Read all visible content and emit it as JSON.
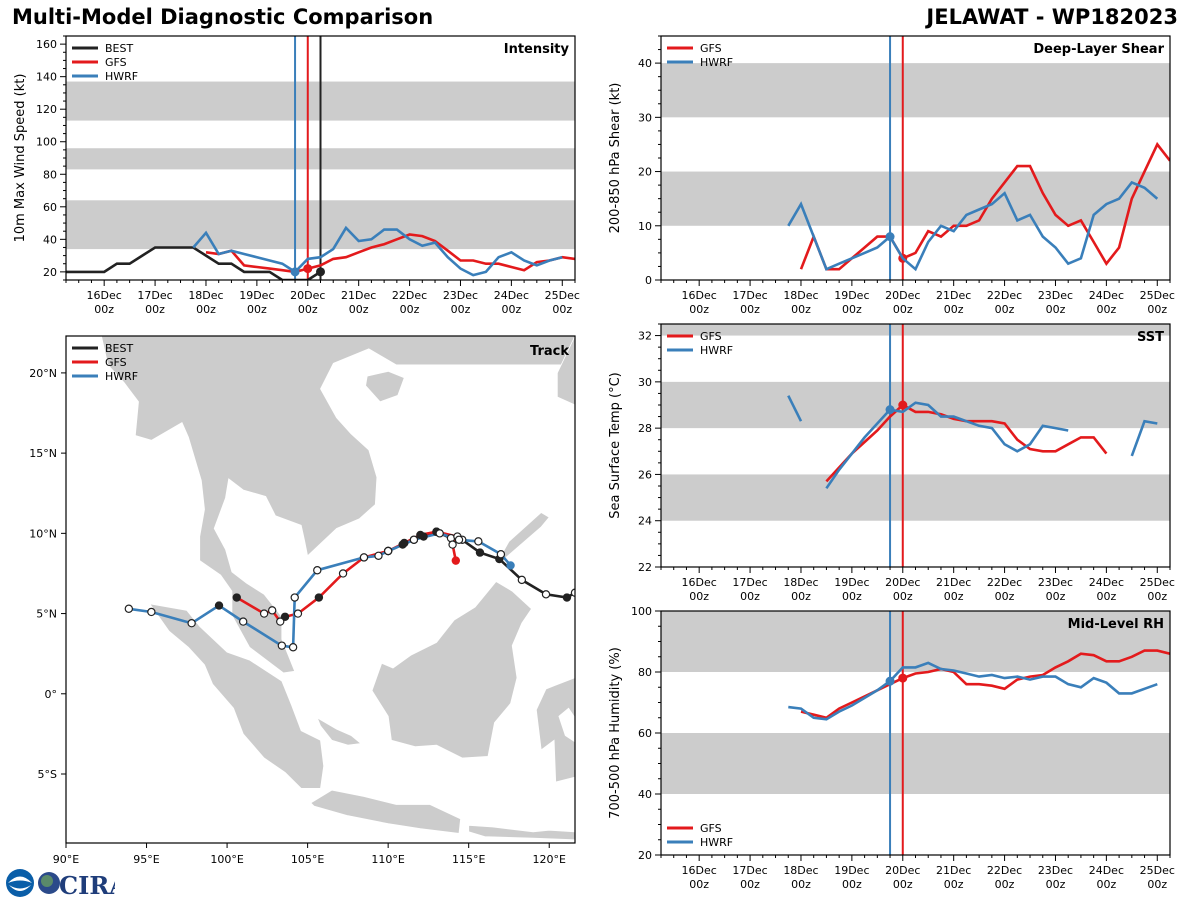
{
  "header": {
    "title": "Multi-Model Diagnostic Comparison",
    "storm": "JELAWAT - WP182023"
  },
  "colors": {
    "BEST": "#222222",
    "GFS": "#e31a1c",
    "HWRF": "#3a7fba",
    "band": "#cccccc"
  },
  "time_ticks": [
    {
      "t": 0,
      "l1": "16Dec",
      "l2": "00z"
    },
    {
      "t": 24,
      "l1": "17Dec",
      "l2": "00z"
    },
    {
      "t": 48,
      "l1": "18Dec",
      "l2": "00z"
    },
    {
      "t": 72,
      "l1": "19Dec",
      "l2": "00z"
    },
    {
      "t": 96,
      "l1": "20Dec",
      "l2": "00z"
    },
    {
      "t": 120,
      "l1": "21Dec",
      "l2": "00z"
    },
    {
      "t": 144,
      "l1": "22Dec",
      "l2": "00z"
    },
    {
      "t": 168,
      "l1": "23Dec",
      "l2": "00z"
    },
    {
      "t": 192,
      "l1": "24Dec",
      "l2": "00z"
    },
    {
      "t": 216,
      "l1": "25Dec",
      "l2": "00z"
    }
  ],
  "logo": {
    "text": "CIRA"
  },
  "chart_data": [
    {
      "id": "intensity",
      "type": "line",
      "title": "Intensity",
      "ylabel": "10m Max Wind Speed (kt)",
      "xlabel": "",
      "xlim": [
        -18,
        222
      ],
      "ylim": [
        15,
        165
      ],
      "yticks": [
        20,
        40,
        60,
        80,
        100,
        120,
        140,
        160
      ],
      "bands": [
        [
          34,
          64
        ],
        [
          83,
          96
        ],
        [
          113,
          137
        ]
      ],
      "legend": [
        "BEST",
        "GFS",
        "HWRF"
      ],
      "legend_position": "top-left",
      "vlines": [
        {
          "model": "HWRF",
          "t": 90
        },
        {
          "model": "GFS",
          "t": 96
        },
        {
          "model": "BEST",
          "t": 102
        }
      ],
      "series": [
        {
          "name": "BEST",
          "t": [
            -18,
            -12,
            -6,
            0,
            6,
            12,
            18,
            24,
            30,
            36,
            42,
            48,
            54,
            60,
            66,
            72,
            78,
            84,
            90,
            96,
            102
          ],
          "values": [
            20,
            20,
            20,
            20,
            25,
            25,
            30,
            35,
            35,
            35,
            35,
            30,
            25,
            25,
            20,
            20,
            20,
            15,
            15,
            15,
            20
          ],
          "marker_t": 102
        },
        {
          "name": "GFS",
          "t": [
            48,
            54,
            60,
            66,
            72,
            78,
            84,
            90,
            96,
            102,
            108,
            114,
            120,
            126,
            132,
            138,
            144,
            150,
            156,
            162,
            168,
            174,
            180,
            186,
            192,
            198,
            204,
            210,
            216,
            222
          ],
          "values": [
            32,
            31,
            33,
            24,
            23,
            22,
            21,
            20,
            22,
            24,
            28,
            29,
            32,
            35,
            37,
            40,
            43,
            42,
            39,
            33,
            27,
            27,
            25,
            25,
            23,
            21,
            26,
            27,
            29,
            28
          ],
          "marker_t": 96
        },
        {
          "name": "HWRF",
          "t": [
            42,
            48,
            54,
            60,
            66,
            72,
            78,
            84,
            90,
            96,
            102,
            108,
            114,
            120,
            126,
            132,
            138,
            144,
            150,
            156,
            162,
            168,
            174,
            180,
            186,
            192,
            198,
            204,
            210,
            216
          ],
          "values": [
            35,
            44,
            31,
            33,
            31,
            29,
            27,
            25,
            20,
            28,
            29,
            34,
            47,
            39,
            40,
            46,
            46,
            40,
            36,
            38,
            29,
            22,
            18,
            20,
            29,
            32,
            27,
            24,
            27,
            29
          ],
          "marker_t": 90
        }
      ]
    },
    {
      "id": "shear",
      "type": "line",
      "title": "Deep-Layer Shear",
      "ylabel": "200-850 hPa Shear (kt)",
      "xlabel": "",
      "xlim": [
        -18,
        222
      ],
      "ylim": [
        0,
        45
      ],
      "yticks": [
        0,
        10,
        20,
        30,
        40
      ],
      "bands": [
        [
          10,
          20
        ],
        [
          30,
          40
        ]
      ],
      "legend": [
        "GFS",
        "HWRF"
      ],
      "legend_position": "top-left",
      "vlines": [
        {
          "model": "HWRF",
          "t": 90
        },
        {
          "model": "GFS",
          "t": 96
        }
      ],
      "series": [
        {
          "name": "GFS",
          "t": [
            48,
            54,
            60,
            66,
            72,
            78,
            84,
            90,
            96,
            102,
            108,
            114,
            120,
            126,
            132,
            138,
            144,
            150,
            156,
            162,
            168,
            174,
            180,
            186,
            192,
            198,
            204,
            210,
            216,
            222
          ],
          "values": [
            2,
            8,
            2,
            2,
            4,
            6,
            8,
            8,
            4,
            5,
            9,
            8,
            10,
            10,
            11,
            15,
            18,
            21,
            21,
            16,
            12,
            10,
            11,
            7,
            3,
            6,
            15,
            20,
            25,
            22
          ],
          "marker_t": 96
        },
        {
          "name": "HWRF",
          "t": [
            42,
            48,
            54,
            60,
            66,
            72,
            78,
            84,
            90,
            96,
            102,
            108,
            114,
            120,
            126,
            132,
            138,
            144,
            150,
            156,
            162,
            168,
            174,
            180,
            186,
            192,
            198,
            204,
            210,
            216
          ],
          "values": [
            10,
            14,
            8,
            2,
            3,
            4,
            5,
            6,
            8,
            4,
            2,
            7,
            10,
            9,
            12,
            13,
            14,
            16,
            11,
            12,
            8,
            6,
            3,
            4,
            12,
            14,
            15,
            18,
            17,
            15
          ],
          "marker_t": 90
        }
      ]
    },
    {
      "id": "track",
      "type": "scatter",
      "title": "Track",
      "xlabel": "",
      "ylabel": "",
      "xlim": [
        90,
        121.6
      ],
      "ylim": [
        -9.3,
        22.3
      ],
      "xticks": [
        {
          "v": 90,
          "l": "90°E"
        },
        {
          "v": 95,
          "l": "95°E"
        },
        {
          "v": 100,
          "l": "100°E"
        },
        {
          "v": 105,
          "l": "105°E"
        },
        {
          "v": 110,
          "l": "110°E"
        },
        {
          "v": 115,
          "l": "115°E"
        },
        {
          "v": 120,
          "l": "120°E"
        }
      ],
      "yticks": [
        {
          "v": 20,
          "l": "20°N"
        },
        {
          "v": 15,
          "l": "15°N"
        },
        {
          "v": 10,
          "l": "10°N"
        },
        {
          "v": 5,
          "l": "5°N"
        },
        {
          "v": 0,
          "l": "0°"
        },
        {
          "v": -5,
          "l": "5°S"
        }
      ],
      "legend": [
        "BEST",
        "GFS",
        "HWRF"
      ],
      "legend_position": "top-left",
      "series": [
        {
          "name": "BEST",
          "lon": [
            121.6,
            121.1,
            119.8,
            118.3,
            116.9,
            115.7,
            114.6,
            113.9,
            113.0,
            112.2,
            111.6,
            110.9,
            110.0
          ],
          "lat": [
            6.3,
            6.0,
            6.2,
            7.1,
            8.4,
            8.8,
            9.6,
            9.7,
            10.1,
            9.8,
            9.6,
            9.3,
            8.9
          ],
          "filled": [
            false,
            true,
            false,
            false,
            true,
            true,
            false,
            false,
            true,
            true,
            false,
            true,
            false
          ]
        },
        {
          "name": "GFS",
          "lon": [
            114.2,
            114.0,
            114.3,
            113.0,
            112.0,
            111.0,
            110.0,
            108.5,
            107.2,
            105.7,
            104.4,
            103.6,
            103.3,
            102.8,
            102.3,
            100.6
          ],
          "lat": [
            8.3,
            9.3,
            9.8,
            10.1,
            9.9,
            9.4,
            8.9,
            8.5,
            7.5,
            6.0,
            5.0,
            4.8,
            4.5,
            5.2,
            5.0,
            6.0
          ],
          "filled": [
            true,
            false,
            false,
            true,
            true,
            true,
            false,
            true,
            false,
            true,
            false,
            true,
            false,
            false,
            false,
            true
          ]
        },
        {
          "name": "HWRF",
          "lon": [
            117.6,
            117.0,
            115.6,
            114.4,
            113.2,
            111.6,
            110.0,
            109.4,
            108.5,
            105.6,
            104.2,
            104.1,
            103.4,
            101.0,
            99.5,
            97.8,
            95.3,
            93.9
          ],
          "lat": [
            8.0,
            8.7,
            9.5,
            9.6,
            10.0,
            9.6,
            8.9,
            8.6,
            8.5,
            7.7,
            6.0,
            2.9,
            3.0,
            4.5,
            5.5,
            4.4,
            5.1,
            5.3
          ],
          "filled": [
            true,
            false,
            false,
            false,
            false,
            false,
            false,
            false,
            false,
            false,
            false,
            false,
            false,
            false,
            true,
            false,
            false,
            false
          ]
        }
      ]
    },
    {
      "id": "sst",
      "type": "line",
      "title": "SST",
      "ylabel": "Sea Surface Temp (°C)",
      "xlabel": "",
      "xlim": [
        -18,
        222
      ],
      "ylim": [
        22,
        32.5
      ],
      "yticks": [
        22,
        24,
        26,
        28,
        30,
        32
      ],
      "bands": [
        [
          24,
          26
        ],
        [
          28,
          30
        ],
        [
          32,
          32.5
        ]
      ],
      "legend": [
        "GFS",
        "HWRF"
      ],
      "legend_position": "top-left",
      "vlines": [
        {
          "model": "HWRF",
          "t": 90
        },
        {
          "model": "GFS",
          "t": 96
        }
      ],
      "series": [
        {
          "name": "GFS",
          "t": [
            60,
            66,
            72,
            78,
            84,
            90,
            96,
            102,
            108,
            114,
            120,
            126,
            132,
            138,
            144,
            150,
            156,
            162,
            168,
            174,
            180,
            186,
            192
          ],
          "values": [
            25.7,
            26.3,
            26.9,
            27.4,
            27.9,
            28.5,
            29.0,
            28.7,
            28.7,
            28.6,
            28.4,
            28.3,
            28.3,
            28.3,
            28.2,
            27.5,
            27.1,
            27.0,
            27.0,
            27.3,
            27.6,
            27.6,
            26.9
          ],
          "marker_t": 96
        },
        {
          "name": "HWRF",
          "t": [
            42,
            48,
            null,
            60,
            66,
            72,
            78,
            84,
            90,
            96,
            102,
            108,
            114,
            120,
            126,
            132,
            138,
            144,
            150,
            156,
            162,
            168,
            174,
            null,
            204,
            210,
            216
          ],
          "values": [
            29.4,
            28.3,
            null,
            25.4,
            26.2,
            26.9,
            27.6,
            28.2,
            28.8,
            28.7,
            29.1,
            29.0,
            28.5,
            28.5,
            28.3,
            28.1,
            28.0,
            27.3,
            27.0,
            27.3,
            28.1,
            28.0,
            27.9,
            null,
            26.8,
            28.3,
            28.2
          ],
          "marker_t": 90
        }
      ]
    },
    {
      "id": "rh",
      "type": "line",
      "title": "Mid-Level RH",
      "ylabel": "700-500 hPa Humidity (%)",
      "xlabel": "",
      "xlim": [
        -18,
        222
      ],
      "ylim": [
        20,
        100
      ],
      "yticks": [
        20,
        40,
        60,
        80,
        100
      ],
      "bands": [
        [
          40,
          60
        ],
        [
          80,
          100
        ]
      ],
      "legend": [
        "GFS",
        "HWRF"
      ],
      "legend_position": "bottom-left",
      "vlines": [
        {
          "model": "HWRF",
          "t": 90
        },
        {
          "model": "GFS",
          "t": 96
        }
      ],
      "series": [
        {
          "name": "GFS",
          "t": [
            48,
            54,
            60,
            66,
            72,
            78,
            84,
            90,
            96,
            102,
            108,
            114,
            120,
            126,
            132,
            138,
            144,
            150,
            156,
            162,
            168,
            174,
            180,
            186,
            192,
            198,
            204,
            210,
            216,
            222
          ],
          "values": [
            67,
            66,
            65,
            68,
            70,
            72,
            74,
            76,
            78,
            79.5,
            80,
            81,
            80,
            76,
            76,
            75.5,
            74.5,
            77.5,
            78.5,
            79,
            81.5,
            83.5,
            86,
            85.5,
            83.5,
            83.5,
            85,
            87,
            87,
            86
          ],
          "marker_t": 96
        },
        {
          "name": "HWRF",
          "t": [
            42,
            48,
            54,
            60,
            66,
            72,
            78,
            84,
            90,
            96,
            102,
            108,
            114,
            120,
            126,
            132,
            138,
            144,
            150,
            156,
            162,
            168,
            174,
            180,
            186,
            192,
            198,
            204,
            210,
            216
          ],
          "values": [
            68.5,
            68,
            65,
            64.5,
            67,
            69,
            71.5,
            74,
            77,
            81.5,
            81.5,
            83,
            81,
            80.5,
            79.5,
            78.5,
            79,
            78,
            78.5,
            77.5,
            78.5,
            78.5,
            76,
            75,
            78,
            76.5,
            73,
            73,
            74.5,
            76
          ],
          "marker_t": 90
        }
      ]
    }
  ]
}
